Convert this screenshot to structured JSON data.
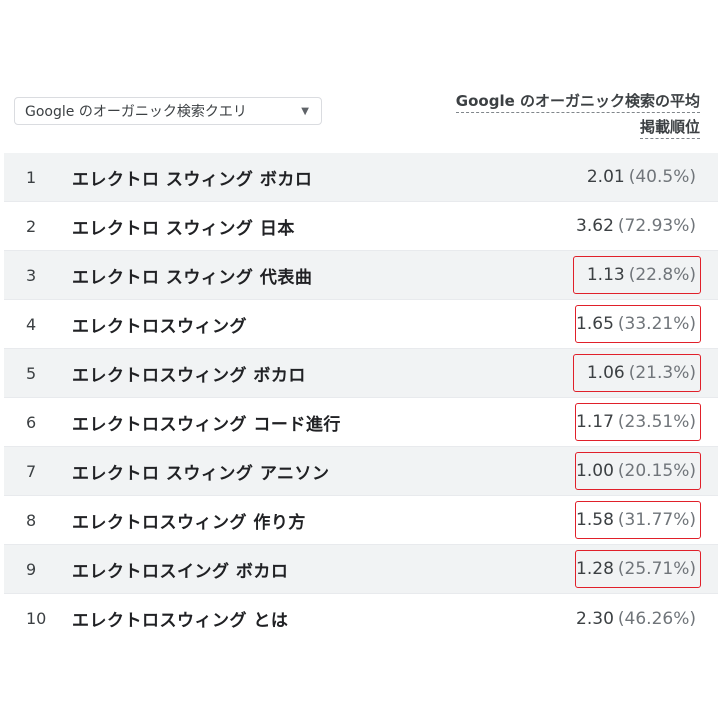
{
  "dimension_select": {
    "label": "Google のオーガニック検索クエリ",
    "caret": "▼"
  },
  "metric_header": {
    "line1": "Google のオーガニック検索の平均",
    "line2": "掲載順位"
  },
  "rows": [
    {
      "index": "1",
      "query": "エレクトロ スウィング ボカロ",
      "value": "2.01",
      "pct": "(40.5%)",
      "highlighted": false
    },
    {
      "index": "2",
      "query": "エレクトロ スウィング 日本",
      "value": "3.62",
      "pct": "(72.93%)",
      "highlighted": false
    },
    {
      "index": "3",
      "query": "エレクトロ スウィング 代表曲",
      "value": "1.13",
      "pct": "(22.8%)",
      "highlighted": true
    },
    {
      "index": "4",
      "query": "エレクトロスウィング",
      "value": "1.65",
      "pct": "(33.21%)",
      "highlighted": true
    },
    {
      "index": "5",
      "query": "エレクトロスウィング ボカロ",
      "value": "1.06",
      "pct": "(21.3%)",
      "highlighted": true
    },
    {
      "index": "6",
      "query": "エレクトロスウィング コード進行",
      "value": "1.17",
      "pct": "(23.51%)",
      "highlighted": true
    },
    {
      "index": "7",
      "query": "エレクトロ スウィング アニソン",
      "value": "1.00",
      "pct": "(20.15%)",
      "highlighted": true
    },
    {
      "index": "8",
      "query": "エレクトロスウィング 作り方",
      "value": "1.58",
      "pct": "(31.77%)",
      "highlighted": true
    },
    {
      "index": "9",
      "query": "エレクトロスイング ボカロ",
      "value": "1.28",
      "pct": "(25.71%)",
      "highlighted": true
    },
    {
      "index": "10",
      "query": "エレクトロスウィング とは",
      "value": "2.30",
      "pct": "(46.26%)",
      "highlighted": false
    }
  ],
  "colors": {
    "highlight": "#e0202a",
    "row_alt": "#f1f3f4"
  }
}
